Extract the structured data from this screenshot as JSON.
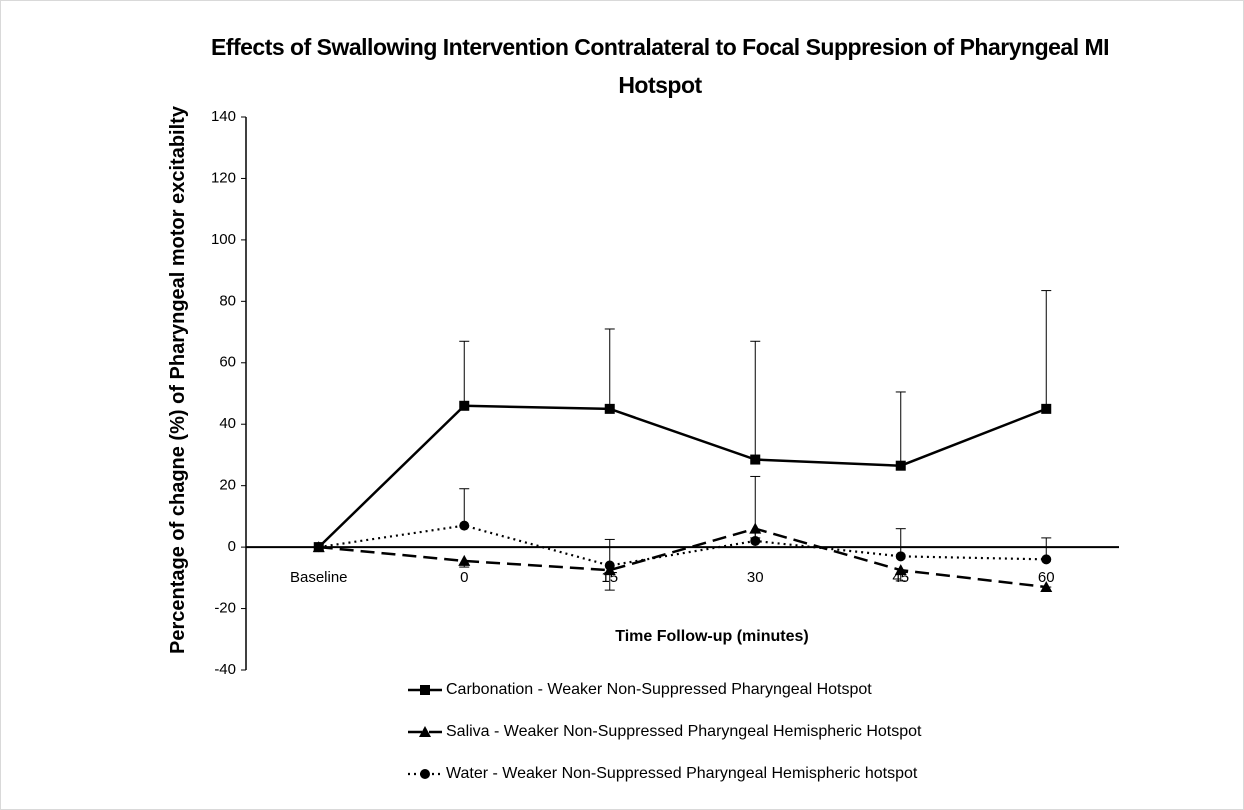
{
  "chart_data": {
    "type": "line",
    "title": "Effects of Swallowing Intervention Contralateral to Focal Suppresion of Pharyngeal MI Hotspot",
    "x_label": "Time Follow-up (minutes)",
    "y_label": "Percentage of chagne (%) of Pharyngeal motor excitabilty",
    "categories": [
      "Baseline",
      "0",
      "15",
      "30",
      "45",
      "60"
    ],
    "ylim": [
      -40,
      140
    ],
    "yticks": [
      -40,
      -20,
      0,
      20,
      40,
      60,
      80,
      100,
      120,
      140
    ],
    "grid": false,
    "legend": "bottom",
    "series": [
      {
        "name": "Carbonation - Weaker Non-Suppressed Pharyngeal Hotspot",
        "color": "#000000",
        "dash": "solid",
        "marker": "square",
        "values": [
          0,
          46,
          45,
          28.5,
          26.5,
          45
        ],
        "errors": [
          0,
          21,
          26,
          38.5,
          24,
          38.5
        ],
        "error_direction": "up"
      },
      {
        "name": "Saliva - Weaker Non-Suppressed Pharyngeal Hemispheric Hotspot",
        "color": "#000000",
        "dash": "dashed",
        "marker": "triangle",
        "values": [
          0,
          -4.5,
          -7.5,
          6,
          -7.5,
          -13
        ],
        "errors": [
          0,
          2,
          6.5,
          3,
          3.5,
          0
        ],
        "error_direction": "down"
      },
      {
        "name": "Water - Weaker Non-Suppressed Pharyngeal Hemispheric hotspot",
        "color": "#000000",
        "dash": "dotted",
        "marker": "circle",
        "values": [
          0,
          7,
          -6,
          2,
          -3,
          -4
        ],
        "errors": [
          0,
          12,
          8.5,
          21,
          9,
          7
        ],
        "error_direction": "up"
      }
    ]
  }
}
